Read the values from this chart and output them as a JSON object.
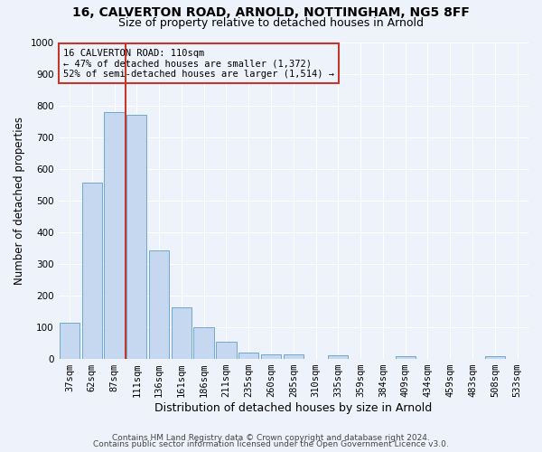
{
  "title1": "16, CALVERTON ROAD, ARNOLD, NOTTINGHAM, NG5 8FF",
  "title2": "Size of property relative to detached houses in Arnold",
  "xlabel": "Distribution of detached houses by size in Arnold",
  "ylabel": "Number of detached properties",
  "categories": [
    "37sqm",
    "62sqm",
    "87sqm",
    "111sqm",
    "136sqm",
    "161sqm",
    "186sqm",
    "211sqm",
    "235sqm",
    "260sqm",
    "285sqm",
    "310sqm",
    "335sqm",
    "359sqm",
    "384sqm",
    "409sqm",
    "434sqm",
    "459sqm",
    "483sqm",
    "508sqm",
    "533sqm"
  ],
  "values": [
    113,
    557,
    778,
    770,
    343,
    163,
    98,
    53,
    18,
    13,
    13,
    0,
    10,
    0,
    0,
    8,
    0,
    0,
    0,
    8,
    0
  ],
  "bar_color": "#c5d8f0",
  "bar_edge_color": "#6fa8d0",
  "vline_color": "#c0392b",
  "annotation_text": "16 CALVERTON ROAD: 110sqm\n← 47% of detached houses are smaller (1,372)\n52% of semi-detached houses are larger (1,514) →",
  "annotation_box_color": "#c0392b",
  "ylim": [
    0,
    1000
  ],
  "yticks": [
    0,
    100,
    200,
    300,
    400,
    500,
    600,
    700,
    800,
    900,
    1000
  ],
  "footer1": "Contains HM Land Registry data © Crown copyright and database right 2024.",
  "footer2": "Contains public sector information licensed under the Open Government Licence v3.0.",
  "bg_color": "#eef2fb",
  "grid_color": "#ffffff",
  "title1_fontsize": 10,
  "title2_fontsize": 9,
  "xlabel_fontsize": 9,
  "ylabel_fontsize": 8.5,
  "tick_fontsize": 7.5,
  "footer_fontsize": 6.5
}
